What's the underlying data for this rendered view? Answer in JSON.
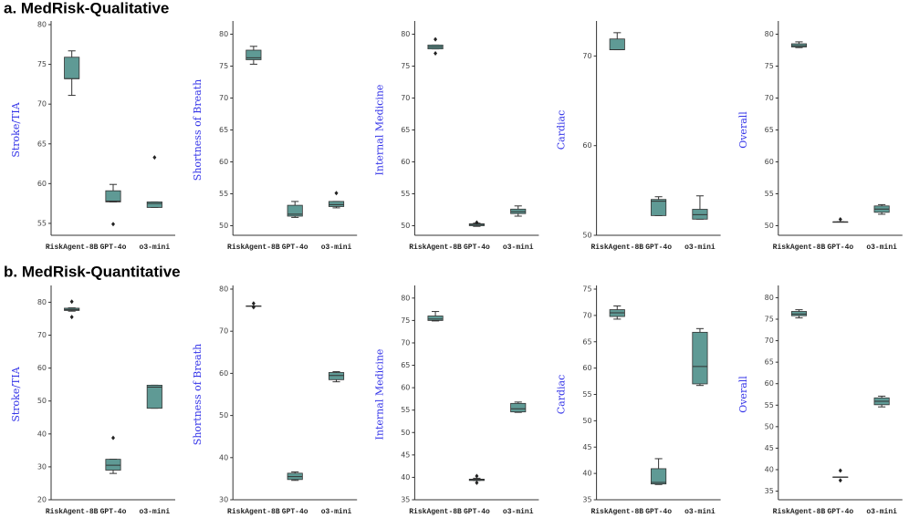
{
  "headings": [
    "a. MedRisk-Qualitative",
    "b. MedRisk-Quantitative"
  ],
  "chart_data": [
    {
      "type": "box",
      "ylabel": "Stroke/TIA",
      "categories": [
        "RiskAgent-8B",
        "GPT-4o",
        "o3-mini"
      ],
      "color": "#5f9a95",
      "ylim": [
        53.5,
        80
      ],
      "yticks": [
        55,
        60,
        65,
        70,
        75,
        80
      ],
      "boxes": [
        {
          "whislo": 71.1,
          "q1": 73.2,
          "med": 73.2,
          "q3": 75.9,
          "whishi": 76.7
        },
        {
          "whislo": 57.7,
          "q1": 57.7,
          "med": 57.8,
          "q3": 59.1,
          "whishi": 59.9,
          "fliers": [
            54.9
          ]
        },
        {
          "whislo": 57.0,
          "q1": 57.0,
          "med": 57.5,
          "q3": 57.7,
          "whishi": 57.7,
          "fliers": [
            63.3
          ]
        }
      ]
    },
    {
      "type": "box",
      "ylabel": "Shortness of Breath",
      "categories": [
        "RiskAgent-8B",
        "GPT-4o",
        "o3-mini"
      ],
      "color": "#5f9a95",
      "ylim": [
        48.5,
        81.5
      ],
      "yticks": [
        50,
        55,
        60,
        65,
        70,
        75,
        80
      ],
      "boxes": [
        {
          "whislo": 75.3,
          "q1": 76.0,
          "med": 76.3,
          "q3": 77.5,
          "whishi": 78.1
        },
        {
          "whislo": 51.3,
          "q1": 51.5,
          "med": 51.8,
          "q3": 53.2,
          "whishi": 53.8
        },
        {
          "whislo": 52.8,
          "q1": 53.0,
          "med": 53.3,
          "q3": 53.8,
          "whishi": 53.8,
          "fliers": [
            55.1
          ]
        }
      ]
    },
    {
      "type": "box",
      "ylabel": "Internal Medicine",
      "categories": [
        "RiskAgent-8B",
        "GPT-4o",
        "o3-mini"
      ],
      "color": "#5f9a95",
      "ylim": [
        48.5,
        81.5
      ],
      "yticks": [
        50,
        55,
        60,
        65,
        70,
        75,
        80
      ],
      "boxes": [
        {
          "whislo": 77.7,
          "q1": 77.7,
          "med": 78.0,
          "q3": 78.3,
          "whishi": 78.3,
          "fliers": [
            79.2,
            77.0
          ]
        },
        {
          "whislo": 49.9,
          "q1": 50.0,
          "med": 50.2,
          "q3": 50.3,
          "whishi": 50.4,
          "fliers": [
            50.5
          ]
        },
        {
          "whislo": 51.5,
          "q1": 51.9,
          "med": 52.2,
          "q3": 52.6,
          "whishi": 53.1
        }
      ]
    },
    {
      "type": "box",
      "ylabel": "Cardiac",
      "categories": [
        "RiskAgent-8B",
        "GPT-4o",
        "o3-mini"
      ],
      "color": "#5f9a95",
      "ylim": [
        50,
        73.5
      ],
      "yticks": [
        50,
        60,
        70
      ],
      "boxes": [
        {
          "whislo": 70.7,
          "q1": 70.7,
          "med": 70.7,
          "q3": 71.9,
          "whishi": 72.6
        },
        {
          "whislo": 52.2,
          "q1": 52.2,
          "med": 53.8,
          "q3": 54.0,
          "whishi": 54.3
        },
        {
          "whislo": 51.8,
          "q1": 51.8,
          "med": 52.3,
          "q3": 52.9,
          "whishi": 54.4
        }
      ]
    },
    {
      "type": "box",
      "ylabel": "Overall",
      "categories": [
        "RiskAgent-8B",
        "GPT-4o",
        "o3-mini"
      ],
      "color": "#5f9a95",
      "ylim": [
        48.5,
        81.5
      ],
      "yticks": [
        50,
        55,
        60,
        65,
        70,
        75,
        80
      ],
      "boxes": [
        {
          "whislo": 77.9,
          "q1": 78.0,
          "med": 78.2,
          "q3": 78.5,
          "whishi": 78.8
        },
        {
          "whislo": 50.6,
          "q1": 50.6,
          "med": 50.6,
          "q3": 50.6,
          "whishi": 50.6,
          "fliers": [
            51.0
          ]
        },
        {
          "whislo": 51.8,
          "q1": 52.1,
          "med": 52.6,
          "q3": 53.1,
          "whishi": 53.3
        }
      ]
    },
    {
      "type": "box",
      "ylabel": "Stroke/TIA",
      "categories": [
        "RiskAgent-8B",
        "GPT-4o",
        "o3-mini"
      ],
      "color": "#5f9a95",
      "ylim": [
        20,
        84
      ],
      "yticks": [
        20,
        30,
        40,
        50,
        60,
        70,
        80
      ],
      "boxes": [
        {
          "whislo": 77.3,
          "q1": 77.5,
          "med": 77.8,
          "q3": 78.2,
          "whishi": 78.3,
          "fliers": [
            80.2,
            75.5
          ]
        },
        {
          "whislo": 28.0,
          "q1": 29.0,
          "med": 30.5,
          "q3": 32.3,
          "whishi": 32.3,
          "fliers": [
            38.8
          ]
        },
        {
          "whislo": 47.8,
          "q1": 47.8,
          "med": 54.2,
          "q3": 54.8,
          "whishi": 54.8
        }
      ]
    },
    {
      "type": "box",
      "ylabel": "Shortness of Breath",
      "categories": [
        "RiskAgent-8B",
        "GPT-4o",
        "o3-mini"
      ],
      "color": "#5f9a95",
      "ylim": [
        30,
        80
      ],
      "yticks": [
        30,
        40,
        50,
        60,
        70,
        80
      ],
      "boxes": [
        {
          "whislo": 76.0,
          "q1": 76.0,
          "med": 76.0,
          "q3": 76.0,
          "whishi": 76.0,
          "fliers": [
            76.6,
            75.7
          ]
        },
        {
          "whislo": 34.6,
          "q1": 34.8,
          "med": 35.5,
          "q3": 36.3,
          "whishi": 36.6
        },
        {
          "whislo": 58.0,
          "q1": 58.5,
          "med": 59.5,
          "q3": 60.2,
          "whishi": 60.4
        }
      ]
    },
    {
      "type": "box",
      "ylabel": "Internal Medicine",
      "categories": [
        "RiskAgent-8B",
        "GPT-4o",
        "o3-mini"
      ],
      "color": "#5f9a95",
      "ylim": [
        35,
        82
      ],
      "yticks": [
        35,
        40,
        45,
        50,
        55,
        60,
        65,
        70,
        75,
        80
      ],
      "boxes": [
        {
          "whislo": 74.9,
          "q1": 75.0,
          "med": 75.3,
          "q3": 76.0,
          "whishi": 77.0
        },
        {
          "whislo": 39.3,
          "q1": 39.3,
          "med": 39.5,
          "q3": 39.6,
          "whishi": 39.8,
          "fliers": [
            40.3,
            38.8
          ]
        },
        {
          "whislo": 54.5,
          "q1": 54.6,
          "med": 55.3,
          "q3": 56.5,
          "whishi": 56.8
        }
      ]
    },
    {
      "type": "box",
      "ylabel": "Cardiac",
      "categories": [
        "RiskAgent-8B",
        "GPT-4o",
        "o3-mini"
      ],
      "color": "#5f9a95",
      "ylim": [
        35,
        75
      ],
      "yticks": [
        35,
        40,
        45,
        50,
        55,
        60,
        65,
        70,
        75
      ],
      "boxes": [
        {
          "whislo": 69.3,
          "q1": 69.8,
          "med": 70.5,
          "q3": 71.1,
          "whishi": 71.8
        },
        {
          "whislo": 37.9,
          "q1": 38.0,
          "med": 38.3,
          "q3": 40.9,
          "whishi": 42.8
        },
        {
          "whislo": 56.7,
          "q1": 57.0,
          "med": 60.3,
          "q3": 66.8,
          "whishi": 67.5
        }
      ]
    },
    {
      "type": "box",
      "ylabel": "Overall",
      "categories": [
        "RiskAgent-8B",
        "GPT-4o",
        "o3-mini"
      ],
      "color": "#5f9a95",
      "ylim": [
        33,
        82
      ],
      "yticks": [
        35,
        40,
        45,
        50,
        55,
        60,
        65,
        70,
        75,
        80
      ],
      "boxes": [
        {
          "whislo": 75.3,
          "q1": 75.8,
          "med": 76.2,
          "q3": 76.8,
          "whishi": 77.2
        },
        {
          "whislo": 38.3,
          "q1": 38.3,
          "med": 38.3,
          "q3": 38.3,
          "whishi": 38.3,
          "fliers": [
            39.8,
            37.5
          ]
        },
        {
          "whislo": 54.6,
          "q1": 55.1,
          "med": 55.9,
          "q3": 56.7,
          "whishi": 57.1
        }
      ]
    }
  ]
}
